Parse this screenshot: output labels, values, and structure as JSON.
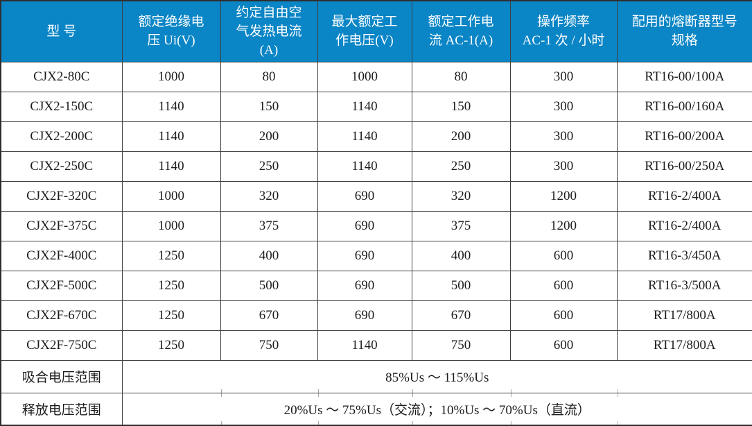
{
  "colors": {
    "header_bg": "#0a85c6",
    "header_text": "#ffffff",
    "body_text": "#1c1c1c",
    "border": "#3f3f3f"
  },
  "table": {
    "columns": [
      {
        "key": "model",
        "label": "型 号"
      },
      {
        "key": "rated-insulation-voltage",
        "label": "额定绝缘电\n压 Ui(V)"
      },
      {
        "key": "free-air-thermal-current",
        "label": "约定自由空\n气发热电流\n(A)"
      },
      {
        "key": "max-rated-working-voltage",
        "label": "最大额定工\n作电压(V)"
      },
      {
        "key": "rated-working-current",
        "label": "额定工作电\n流 AC-1(A)"
      },
      {
        "key": "operating-frequency",
        "label": "操作频率\nAC-1 次 / 小时"
      },
      {
        "key": "fuse-spec",
        "label": "配用的熔断器型号\n规格"
      }
    ],
    "rows": [
      [
        "CJX2-80C",
        "1000",
        "80",
        "1000",
        "80",
        "300",
        "RT16-00/100A"
      ],
      [
        "CJX2-150C",
        "1140",
        "150",
        "1140",
        "150",
        "300",
        "RT16-00/160A"
      ],
      [
        "CJX2-200C",
        "1140",
        "200",
        "1140",
        "200",
        "300",
        "RT16-00/200A"
      ],
      [
        "CJX2-250C",
        "1140",
        "250",
        "1140",
        "250",
        "300",
        "RT16-00/250A"
      ],
      [
        "CJX2F-320C",
        "1000",
        "320",
        "690",
        "320",
        "1200",
        "RT16-2/400A"
      ],
      [
        "CJX2F-375C",
        "1000",
        "375",
        "690",
        "375",
        "1200",
        "RT16-2/400A"
      ],
      [
        "CJX2F-400C",
        "1250",
        "400",
        "690",
        "400",
        "600",
        "RT16-3/450A"
      ],
      [
        "CJX2F-500C",
        "1250",
        "500",
        "690",
        "500",
        "600",
        "RT16-3/500A"
      ],
      [
        "CJX2F-670C",
        "1250",
        "670",
        "690",
        "670",
        "600",
        "RT17/800A"
      ],
      [
        "CJX2F-750C",
        "1250",
        "750",
        "1140",
        "750",
        "600",
        "RT17/800A"
      ]
    ],
    "footer_rows": [
      {
        "key": "pickup-voltage-range",
        "label": "吸合电压范围",
        "value": "85%Us ～ 115%Us"
      },
      {
        "key": "release-voltage-range",
        "label": "释放电压范围",
        "value": "20%Us ～ 75%Us（交流）；10%Us ～ 70%Us（直流）"
      }
    ]
  }
}
